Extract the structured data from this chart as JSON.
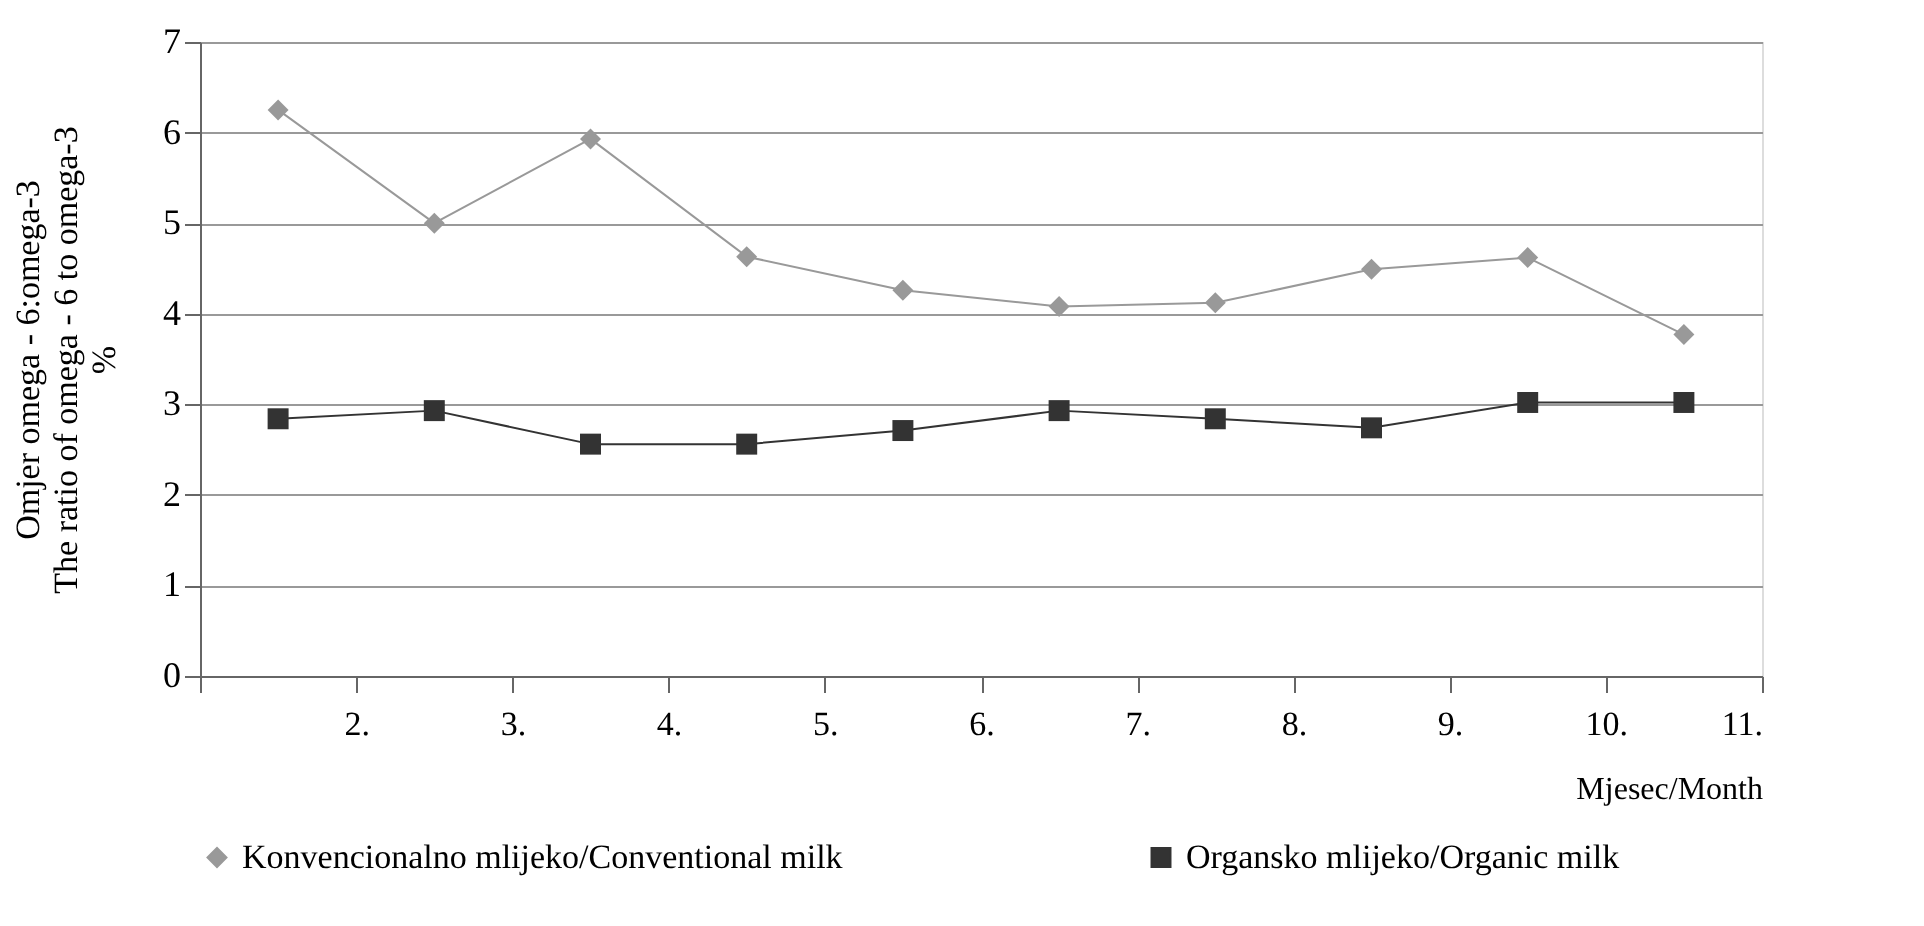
{
  "chart_data": {
    "type": "line",
    "xlabel": "Mjesec/Month",
    "ylabel": "Omjer omega - 6:omega-3\nThe ratio of omega - 6 to omega-3\n%",
    "x": [
      1.5,
      2.5,
      3.5,
      4.5,
      5.5,
      6.5,
      7.5,
      8.5,
      9.5,
      10.5
    ],
    "xlim": [
      1,
      11
    ],
    "xticks": [
      {
        "value": 1,
        "label": null
      },
      {
        "value": 2,
        "label": "2."
      },
      {
        "value": 3,
        "label": "3."
      },
      {
        "value": 4,
        "label": "4."
      },
      {
        "value": 5,
        "label": "5."
      },
      {
        "value": 6,
        "label": "6."
      },
      {
        "value": 7,
        "label": "7."
      },
      {
        "value": 8,
        "label": "8."
      },
      {
        "value": 9,
        "label": "9."
      },
      {
        "value": 10,
        "label": "10."
      },
      {
        "value": 11,
        "label": "11."
      }
    ],
    "ylim": [
      0,
      7
    ],
    "yticks": [
      0,
      1,
      2,
      3,
      4,
      5,
      6,
      7
    ],
    "grid": "y",
    "legend": "bottom",
    "series": [
      {
        "name": "Konvencionalno mlijeko/Conventional milk",
        "color": "#999999",
        "marker": "diamond",
        "values": [
          6.25,
          5.0,
          5.93,
          4.63,
          4.26,
          4.08,
          4.12,
          4.49,
          4.62,
          3.77
        ]
      },
      {
        "name": "Organsko mlijeko/Organic milk",
        "color": "#333333",
        "marker": "square",
        "values": [
          2.84,
          2.93,
          2.56,
          2.56,
          2.71,
          2.93,
          2.84,
          2.74,
          3.02,
          3.02
        ]
      }
    ]
  }
}
